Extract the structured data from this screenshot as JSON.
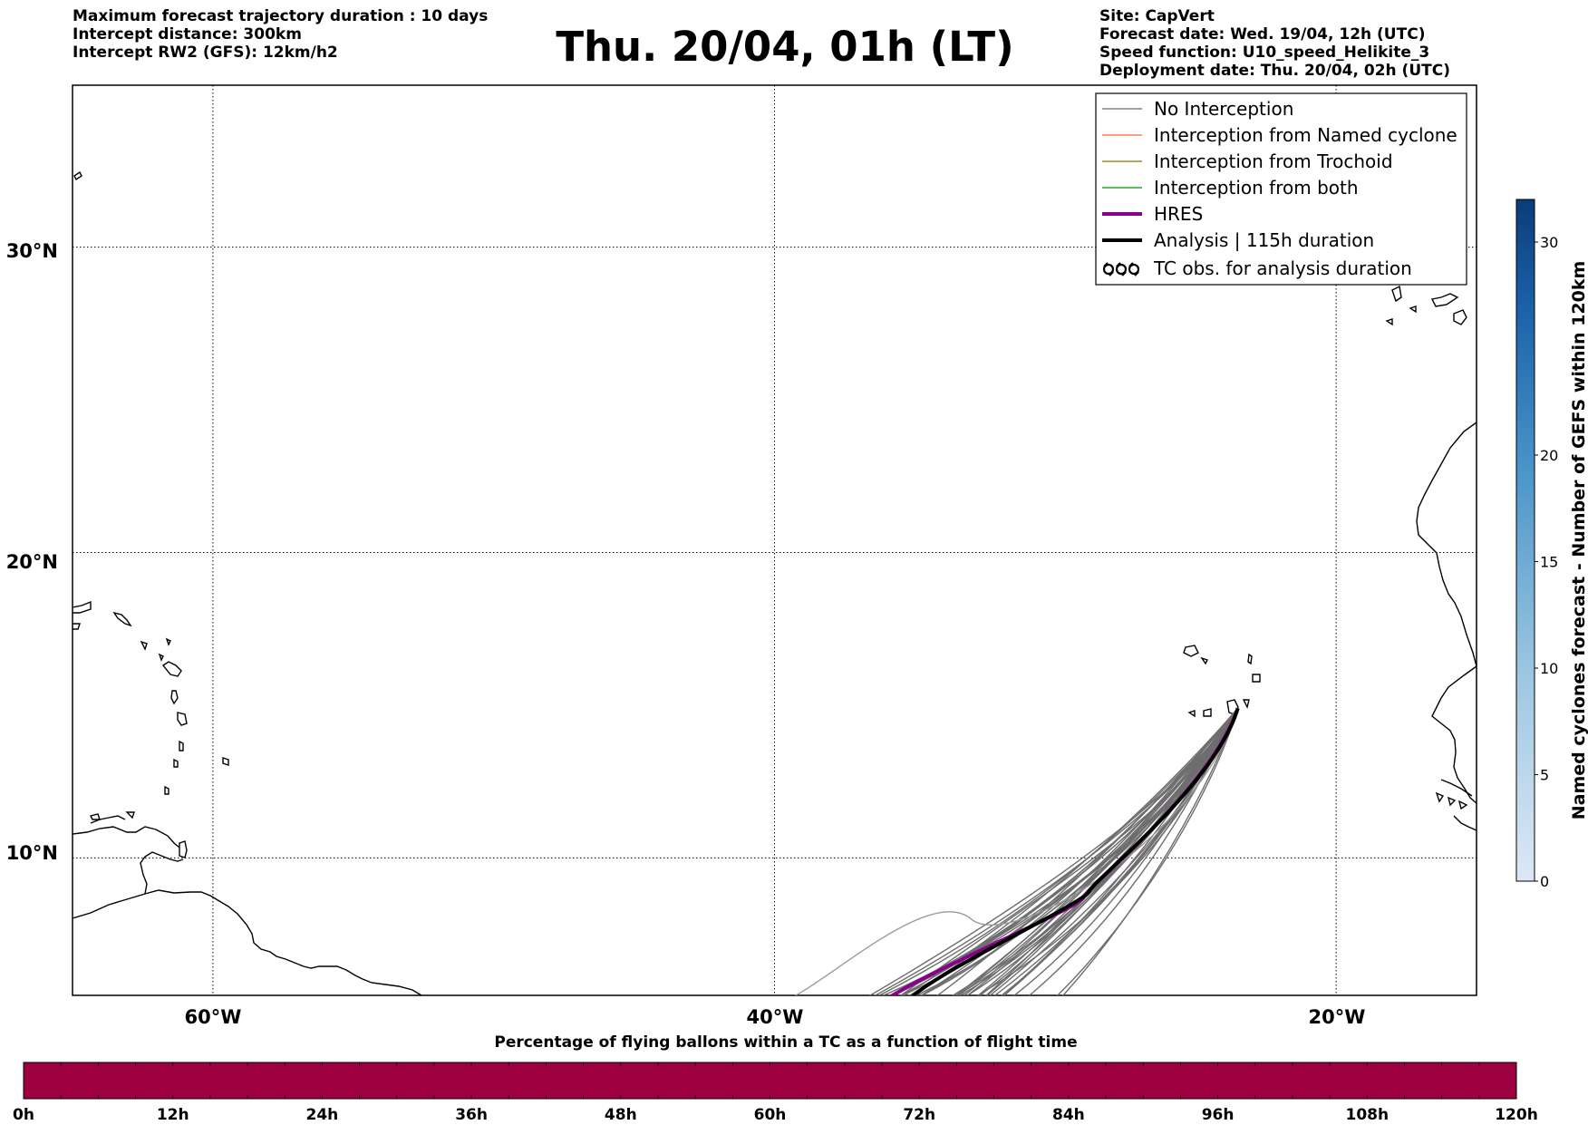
{
  "header": {
    "left_lines": [
      "Maximum forecast trajectory duration : 10 days",
      "Intercept distance: 300km",
      "Intercept RW2 (GFS):  12km/h2"
    ],
    "title": "Thu. 20/04, 01h (LT)",
    "right_lines": [
      "Site: CapVert",
      "Forecast date: Wed. 19/04, 12h (UTC)",
      "Speed function: U10_speed_Helikite_3",
      "Deployment date: Thu. 20/04, 02h (UTC)"
    ]
  },
  "map": {
    "extent": {
      "lon_min": -65,
      "lon_max": -15,
      "lat_min": 5.5,
      "lat_max": 35.3
    },
    "lat_labels": [
      "30°N",
      "20°N",
      "10°N"
    ],
    "lon_labels": [
      "60°W",
      "40°W",
      "20°W"
    ],
    "lat_lines": [
      30,
      20,
      10
    ],
    "lon_lines": [
      -60,
      -40,
      -20
    ]
  },
  "legend": {
    "items": [
      {
        "label": "No Interception",
        "color": "#808080",
        "kind": "thin"
      },
      {
        "label": "Interception from Named cyclone",
        "color": "#ff7f50",
        "kind": "thin"
      },
      {
        "label": "Interception from Trochoid",
        "color": "#9b8b2a",
        "kind": "thin"
      },
      {
        "label": "Interception from both",
        "color": "#2ca02c",
        "kind": "thin"
      },
      {
        "label": "HRES",
        "color": "#8b008b",
        "kind": "thick"
      },
      {
        "label": "Analysis | 115h duration",
        "color": "#000000",
        "kind": "thick"
      },
      {
        "label": "TC obs. for analysis duration",
        "color": "#000000",
        "kind": "symbol"
      }
    ]
  },
  "colorbar_right": {
    "title": "Named cyclones forecast - Number of GEFS within 120km",
    "ticks": [
      "0",
      "5",
      "10",
      "15",
      "20",
      "30"
    ],
    "tick_values": [
      0,
      5,
      10,
      15,
      20,
      30
    ],
    "vmin": 0,
    "vmax": 32
  },
  "colorbar_bottom": {
    "title": "Percentage of flying ballons within a TC as a function of flight time",
    "ticks": [
      "0h",
      "12h",
      "24h",
      "36h",
      "48h",
      "60h",
      "72h",
      "84h",
      "96h",
      "108h",
      "120h"
    ],
    "fill_color": "#9e0142"
  },
  "trajectories": {
    "origin": {
      "lon": -23.5,
      "lat": 14.9
    },
    "hres_end": {
      "lon": -36,
      "lat": 5.5
    },
    "analysis_end": {
      "lon": -35.2,
      "lat": 5.5
    }
  }
}
